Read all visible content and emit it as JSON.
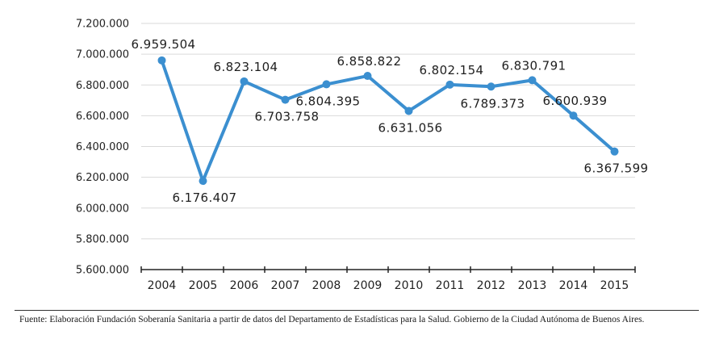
{
  "chart_data": {
    "type": "line",
    "categories": [
      "2004",
      "2005",
      "2006",
      "2007",
      "2008",
      "2009",
      "2010",
      "2011",
      "2012",
      "2013",
      "2014",
      "2015"
    ],
    "series": [
      {
        "values": [
          6959504,
          6176407,
          6823104,
          6703758,
          6804395,
          6858822,
          6631056,
          6802154,
          6789373,
          6830791,
          6600939,
          6367599
        ],
        "labels": [
          "6.959.504",
          "6.176.407",
          "6.823.104",
          "6.703.758",
          "6.804.395",
          "6.858.822",
          "6.631.056",
          "6.802.154",
          "6.789.373",
          "6.830.791",
          "6.600.939",
          "6.367.599"
        ],
        "color": "#3b8fd0"
      }
    ],
    "yticks": [
      5600000,
      5800000,
      6000000,
      6200000,
      6400000,
      6600000,
      6800000,
      7000000,
      7200000
    ],
    "ytick_labels": [
      "5.600.000",
      "5.800.000",
      "6.000.000",
      "6.200.000",
      "6.400.000",
      "6.600.000",
      "6.800.000",
      "7.000.000",
      "7.200.000"
    ],
    "ylim": [
      5600000,
      7200000
    ],
    "title": "",
    "xlabel": "",
    "ylabel": "",
    "grid": true,
    "grid_color": "#d9d9d9",
    "axis_color": "#222222"
  },
  "source": "Fuente: Elaboración Fundación Soberanía Sanitaria a partir de datos del Departamento de Estadísticas para la Salud. Gobierno de la Ciudad Autónoma de Buenos Aires."
}
